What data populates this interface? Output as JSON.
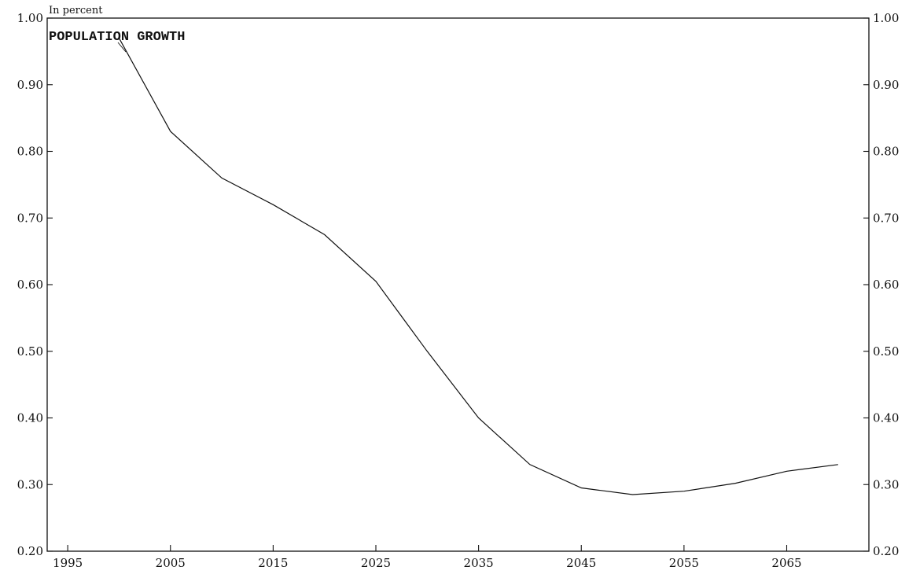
{
  "chart_data": {
    "type": "line",
    "ylabel": "In percent",
    "series_label": "POPULATION GROWTH",
    "x_ticks": [
      1995,
      2005,
      2015,
      2025,
      2035,
      2045,
      2055,
      2065
    ],
    "x_tick_labels": [
      "1995",
      "2005",
      "2015",
      "2025",
      "2035",
      "2045",
      "2055",
      "2065"
    ],
    "xlim": [
      1993,
      2073
    ],
    "ylim": [
      0.2,
      1.0
    ],
    "y_ticks": [
      0.2,
      0.3,
      0.4,
      0.5,
      0.6,
      0.7,
      0.8,
      0.9,
      1.0
    ],
    "y_tick_labels": [
      "0.20",
      "0.30",
      "0.40",
      "0.50",
      "0.60",
      "0.70",
      "0.80",
      "0.90",
      "1.00"
    ],
    "right_axis_labels": true,
    "grid": false,
    "legend": "none",
    "series": [
      {
        "name": "POPULATION GROWTH",
        "color": "#111111",
        "x": [
          2000,
          2005,
          2010,
          2015,
          2020,
          2025,
          2030,
          2035,
          2040,
          2045,
          2050,
          2055,
          2060,
          2065,
          2070
        ],
        "y": [
          0.97,
          0.83,
          0.76,
          0.72,
          0.675,
          0.605,
          0.5,
          0.4,
          0.33,
          0.295,
          0.285,
          0.29,
          0.302,
          0.32,
          0.33
        ]
      }
    ]
  }
}
